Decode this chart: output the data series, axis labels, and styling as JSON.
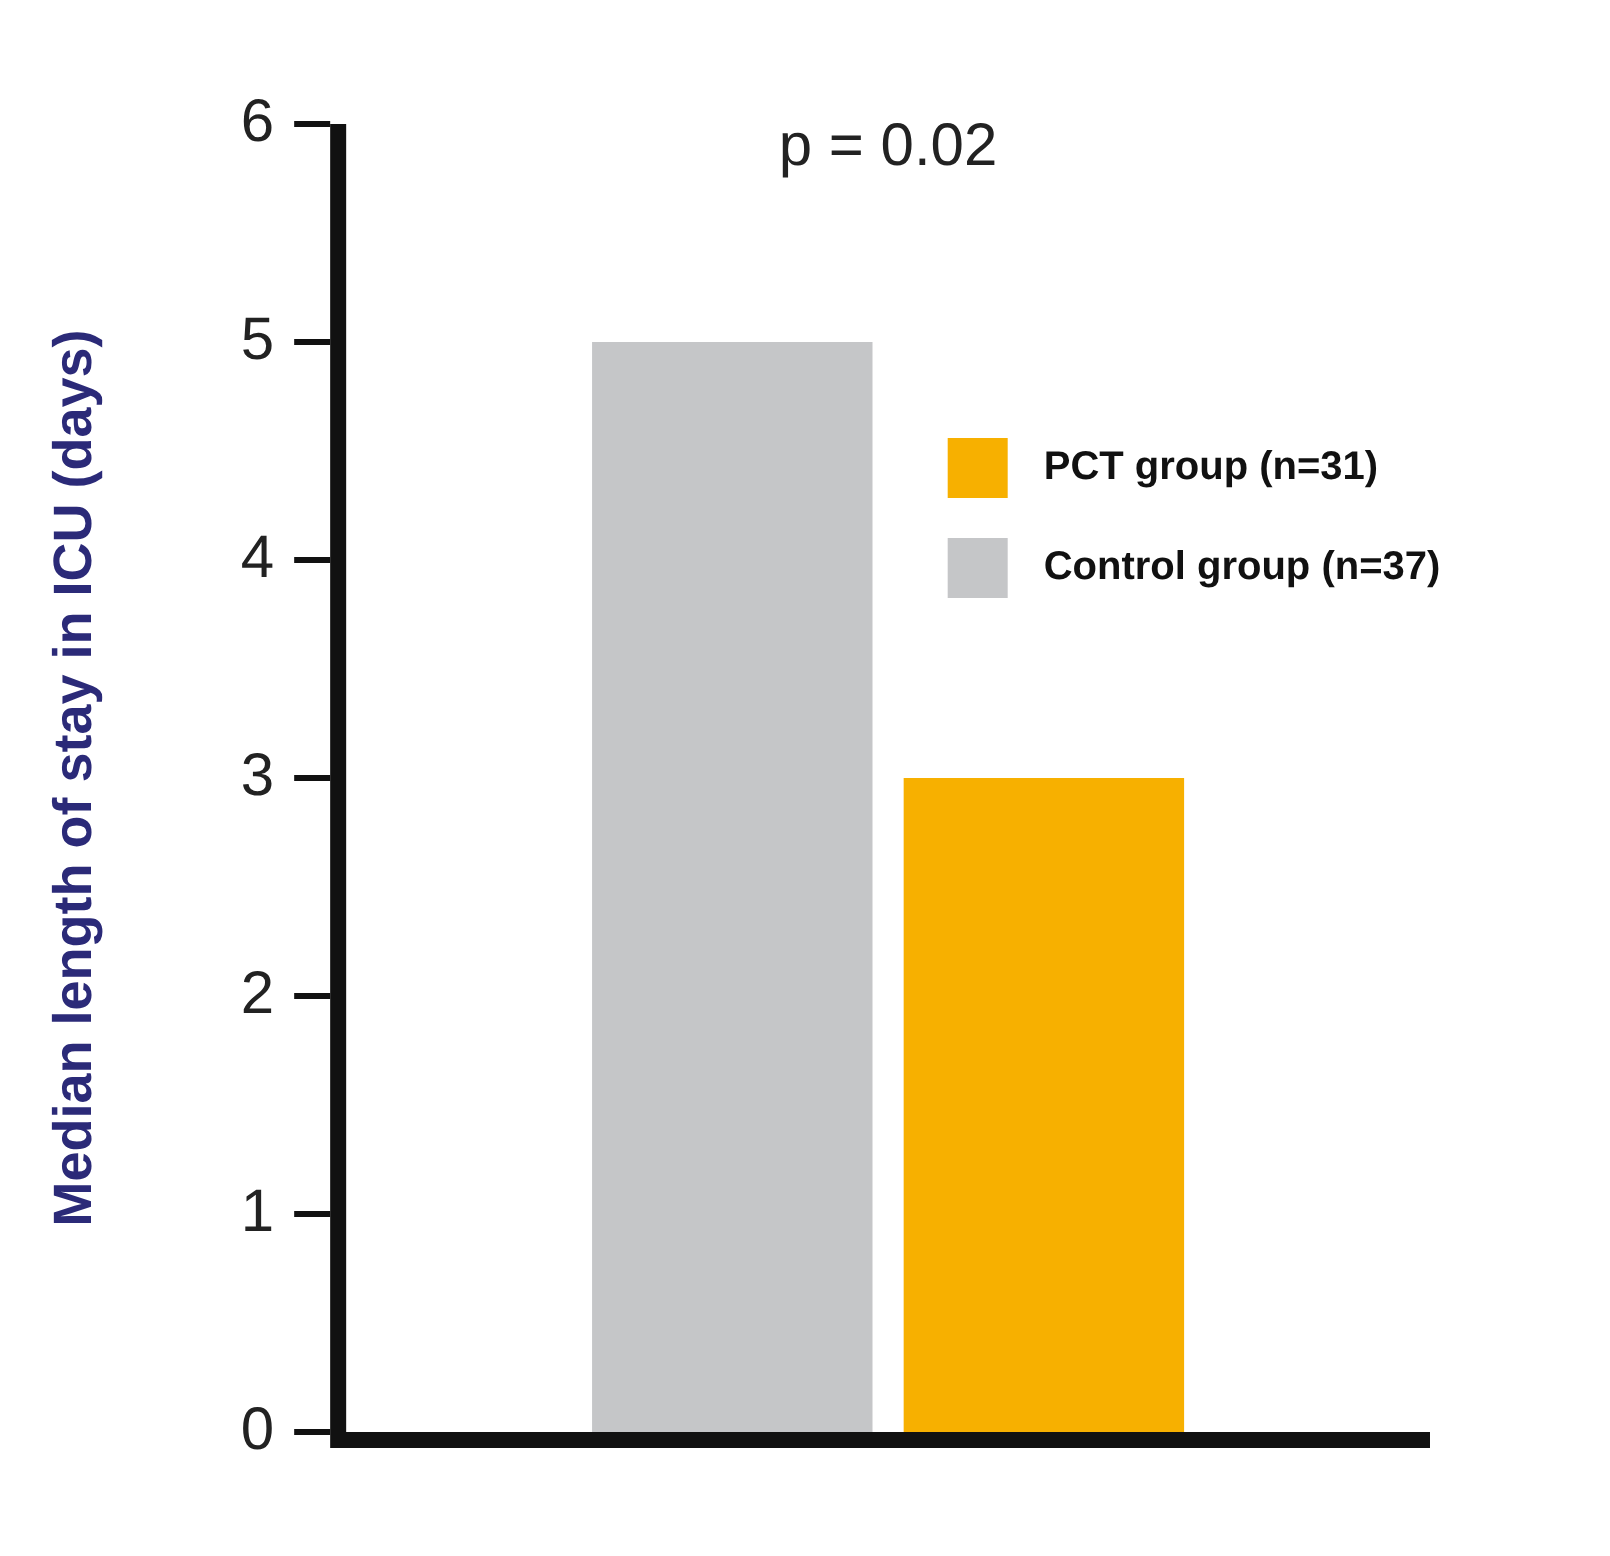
{
  "chart_data": {
    "type": "bar",
    "ylabel": "Median length of stay in ICU (days)",
    "categories": [
      null
    ],
    "series": [
      {
        "name": "Control group (n=37)",
        "color": "#c5c6c8",
        "values": [
          5
        ]
      },
      {
        "name": "PCT group (n=31)",
        "color": "#f7b000",
        "values": [
          3
        ]
      }
    ],
    "ylim": [
      0,
      6
    ],
    "yticks": [
      0,
      1,
      2,
      3,
      4,
      5,
      6
    ],
    "grid": false,
    "legend": "top right",
    "annotations": [
      "p = 0.02"
    ]
  }
}
